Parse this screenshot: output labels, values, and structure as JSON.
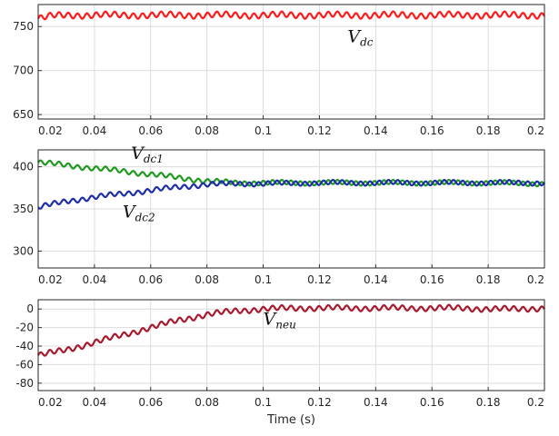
{
  "chart_data": [
    {
      "type": "line",
      "title": "",
      "xlabel": "",
      "ylabel": "",
      "xlim": [
        0.02,
        0.2
      ],
      "ylim": [
        645,
        775
      ],
      "x_ticks": [
        "0.02",
        "0.04",
        "0.06",
        "0.08",
        "0.1",
        "0.12",
        "0.14",
        "0.16",
        "0.18",
        "0.2"
      ],
      "y_ticks": [
        "650",
        "700",
        "750"
      ],
      "grid": true,
      "series": [
        {
          "name": "V_dc",
          "color": "#ff1a1a",
          "x": [
            0.02,
            0.025,
            0.03,
            0.04,
            0.06,
            0.08,
            0.1,
            0.12,
            0.14,
            0.16,
            0.18,
            0.2
          ],
          "y": [
            759,
            762,
            763,
            763,
            763,
            763,
            763,
            763,
            763,
            763,
            763,
            763
          ],
          "ripple_amplitude": 3,
          "ripple_period": 0.0033
        }
      ],
      "annotations": [
        {
          "main": "V",
          "sub": "dc",
          "x": 0.13,
          "y": 732
        }
      ]
    },
    {
      "type": "line",
      "title": "",
      "xlabel": "",
      "ylabel": "",
      "xlim": [
        0.02,
        0.2
      ],
      "ylim": [
        280,
        420
      ],
      "x_ticks": [
        "0.02",
        "0.04",
        "0.06",
        "0.08",
        "0.1",
        "0.12",
        "0.14",
        "0.16",
        "0.18",
        "0.2"
      ],
      "y_ticks": [
        "300",
        "350",
        "400"
      ],
      "grid": true,
      "series": [
        {
          "name": "V_dc1",
          "color": "#1e9a1e",
          "x": [
            0.02,
            0.03,
            0.04,
            0.05,
            0.06,
            0.07,
            0.08,
            0.09,
            0.1,
            0.12,
            0.14,
            0.16,
            0.18,
            0.2
          ],
          "y": [
            405,
            402,
            398,
            395,
            391,
            387,
            383,
            381,
            381,
            381,
            381,
            381,
            381,
            380
          ],
          "ripple_amplitude": 2.5,
          "ripple_period": 0.0033
        },
        {
          "name": "V_dc2",
          "color": "#1e2ea8",
          "x": [
            0.02,
            0.03,
            0.04,
            0.05,
            0.06,
            0.07,
            0.08,
            0.09,
            0.1,
            0.12,
            0.14,
            0.16,
            0.18,
            0.2
          ],
          "y": [
            352,
            359,
            364,
            368,
            372,
            376,
            379,
            380,
            380,
            381,
            381,
            381,
            381,
            381
          ],
          "ripple_amplitude": 2.5,
          "ripple_period": 0.0033
        }
      ],
      "annotations": [
        {
          "main": "V",
          "sub": "dc1",
          "x": 0.053,
          "y": 409
        },
        {
          "main": "V",
          "sub": "dc2",
          "x": 0.05,
          "y": 340
        }
      ]
    },
    {
      "type": "line",
      "title": "",
      "xlabel": "Time (s)",
      "ylabel": "",
      "xlim": [
        0.02,
        0.2
      ],
      "ylim": [
        -88,
        10
      ],
      "x_ticks": [
        "0.02",
        "0.04",
        "0.06",
        "0.08",
        "0.1",
        "0.12",
        "0.14",
        "0.16",
        "0.18",
        "0.2"
      ],
      "y_ticks": [
        "-80",
        "-60",
        "-40",
        "-20",
        "0"
      ],
      "grid": true,
      "series": [
        {
          "name": "V_neu",
          "color": "#a8192e",
          "x": [
            0.02,
            0.03,
            0.04,
            0.05,
            0.06,
            0.07,
            0.08,
            0.09,
            0.1,
            0.11,
            0.12,
            0.13,
            0.14,
            0.15,
            0.16,
            0.17,
            0.18,
            0.19,
            0.2
          ],
          "y": [
            -50,
            -44,
            -36,
            -28,
            -20,
            -12,
            -6,
            -2,
            0,
            1,
            1,
            1,
            1,
            1,
            1,
            1,
            0,
            0,
            1
          ],
          "ripple_amplitude": 2.5,
          "ripple_period": 0.0033
        }
      ],
      "annotations": [
        {
          "main": "V",
          "sub": "neu",
          "x": 0.1,
          "y": -17
        }
      ]
    }
  ]
}
